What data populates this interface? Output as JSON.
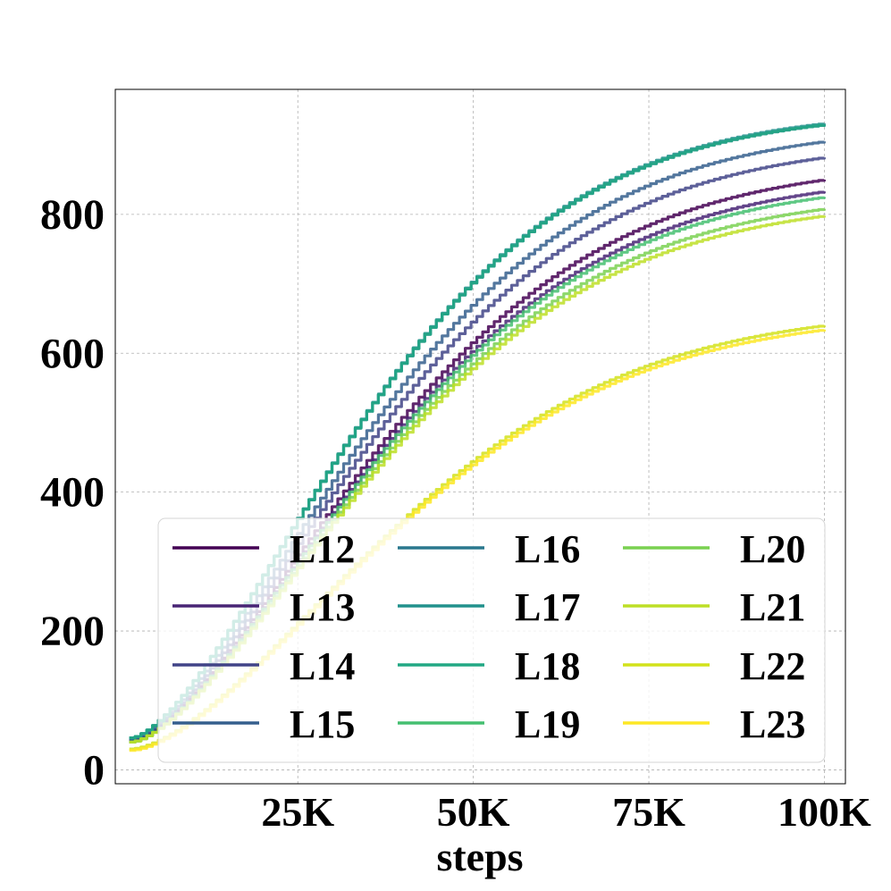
{
  "chart_data": {
    "type": "line",
    "title": "",
    "xlabel": "steps",
    "ylabel": "",
    "xlim": [
      -1000,
      103000
    ],
    "ylim": [
      -20,
      980
    ],
    "x_ticks": [
      25000,
      50000,
      75000,
      100000
    ],
    "x_tick_labels": [
      "25K",
      "50K",
      "75K",
      "100K"
    ],
    "y_ticks": [
      0,
      200,
      400,
      600,
      800
    ],
    "y_tick_labels": [
      "0",
      "200",
      "400",
      "600",
      "800"
    ],
    "grid": true,
    "legend": {
      "position": "lower-center",
      "columns": 3
    },
    "x_start": 1000,
    "x_end": 100000,
    "series": [
      {
        "name": "L12",
        "color": "#440154",
        "start": 42,
        "plateau": 850,
        "k": 3.5,
        "p": 1.55
      },
      {
        "name": "L13",
        "color": "#482475",
        "start": 40,
        "plateau": 833,
        "k": 3.5,
        "p": 1.55
      },
      {
        "name": "L14",
        "color": "#414487",
        "start": 42,
        "plateau": 882,
        "k": 3.6,
        "p": 1.55
      },
      {
        "name": "L15",
        "color": "#355f8d",
        "start": 44,
        "plateau": 905,
        "k": 3.7,
        "p": 1.55
      },
      {
        "name": "L16",
        "color": "#2a788e",
        "start": 46,
        "plateau": 929,
        "k": 3.9,
        "p": 1.55
      },
      {
        "name": "L17",
        "color": "#21918c",
        "start": 46,
        "plateau": 931,
        "k": 3.9,
        "p": 1.55
      },
      {
        "name": "L18",
        "color": "#22a884",
        "start": 46,
        "plateau": 929,
        "k": 3.9,
        "p": 1.55
      },
      {
        "name": "L19",
        "color": "#44bf70",
        "start": 40,
        "plateau": 825,
        "k": 3.5,
        "p": 1.55
      },
      {
        "name": "L20",
        "color": "#7ad151",
        "start": 40,
        "plateau": 808,
        "k": 3.5,
        "p": 1.55
      },
      {
        "name": "L21",
        "color": "#bddf26",
        "start": 40,
        "plateau": 798,
        "k": 3.5,
        "p": 1.55
      },
      {
        "name": "L22",
        "color": "#d2e21b",
        "start": 30,
        "plateau": 640,
        "k": 3.3,
        "p": 1.6
      },
      {
        "name": "L23",
        "color": "#fde725",
        "start": 28,
        "plateau": 634,
        "k": 3.3,
        "p": 1.6
      }
    ]
  }
}
